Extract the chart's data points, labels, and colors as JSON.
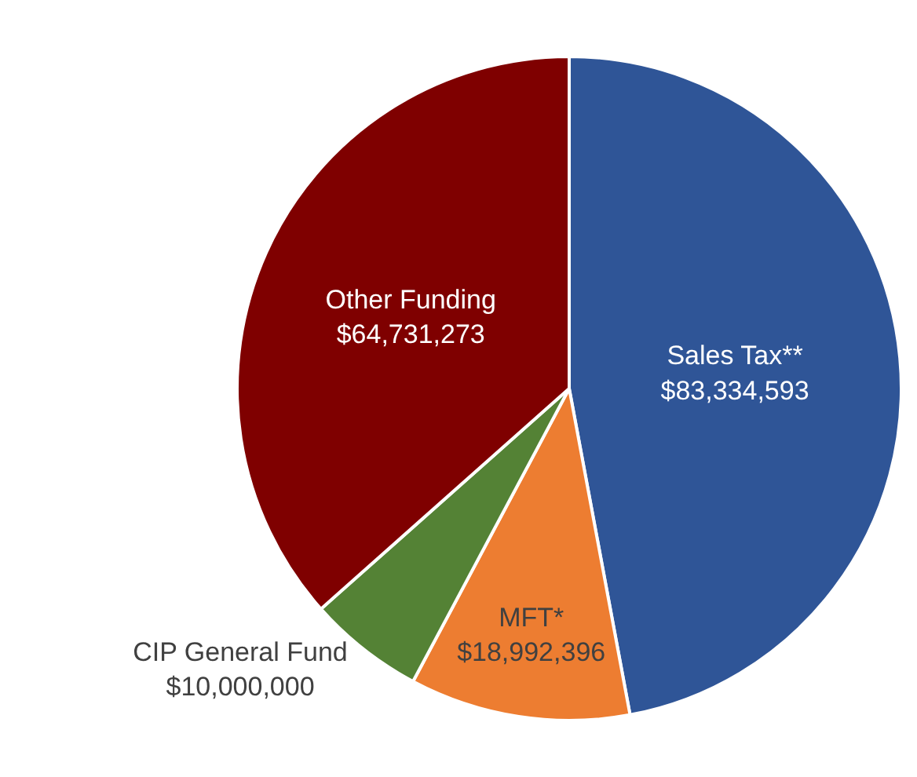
{
  "chart_data": {
    "type": "pie",
    "categories": [
      "Sales Tax**",
      "MFT*",
      "CIP General Fund",
      "Other Funding"
    ],
    "values": [
      83334593,
      18992396,
      10000000,
      64731273
    ],
    "value_labels": [
      "$83,334,593",
      "$18,992,396",
      "$10,000,000",
      "$64,731,273"
    ],
    "colors": [
      "#2f5597",
      "#ed7d31",
      "#548235",
      "#7f0000"
    ],
    "legend": false
  }
}
